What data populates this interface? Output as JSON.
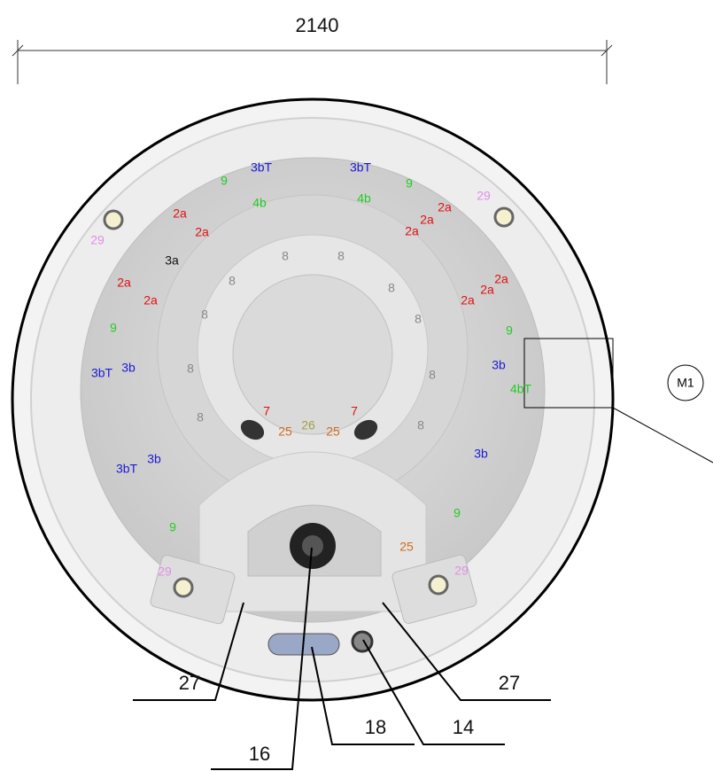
{
  "dimension": "2140",
  "labels": [
    {
      "text": "3bT",
      "color": "#1a1ad6"
    },
    {
      "text": "3bT",
      "color": "#1a1ad6"
    },
    {
      "text": "9",
      "color": "#22cc22"
    },
    {
      "text": "9",
      "color": "#22cc22"
    },
    {
      "text": "29",
      "color": "#e08ee8"
    },
    {
      "text": "4b",
      "color": "#22cc22"
    },
    {
      "text": "4b",
      "color": "#22cc22"
    },
    {
      "text": "2a",
      "color": "#e01010"
    },
    {
      "text": "2a",
      "color": "#e01010"
    },
    {
      "text": "2a",
      "color": "#e01010"
    },
    {
      "text": "2a",
      "color": "#e01010"
    },
    {
      "text": "2a",
      "color": "#e01010"
    },
    {
      "text": "29",
      "color": "#e08ee8"
    },
    {
      "text": "3a",
      "color": "#111111"
    },
    {
      "text": "8",
      "color": "#888888"
    },
    {
      "text": "8",
      "color": "#888888"
    },
    {
      "text": "2a",
      "color": "#e01010"
    },
    {
      "text": "2a",
      "color": "#e01010"
    },
    {
      "text": "2a",
      "color": "#e01010"
    },
    {
      "text": "2a",
      "color": "#e01010"
    },
    {
      "text": "2a",
      "color": "#e01010"
    },
    {
      "text": "8",
      "color": "#888888"
    },
    {
      "text": "8",
      "color": "#888888"
    },
    {
      "text": "8",
      "color": "#888888"
    },
    {
      "text": "8",
      "color": "#888888"
    },
    {
      "text": "8",
      "color": "#888888"
    },
    {
      "text": "8",
      "color": "#888888"
    },
    {
      "text": "8",
      "color": "#888888"
    },
    {
      "text": "8",
      "color": "#888888"
    },
    {
      "text": "9",
      "color": "#22cc22"
    },
    {
      "text": "9",
      "color": "#22cc22"
    },
    {
      "text": "3bT",
      "color": "#1a1ad6"
    },
    {
      "text": "3b",
      "color": "#1a1ad6"
    },
    {
      "text": "3b",
      "color": "#1a1ad6"
    },
    {
      "text": "4bT",
      "color": "#22cc22"
    },
    {
      "text": "7",
      "color": "#e01010"
    },
    {
      "text": "7",
      "color": "#e01010"
    },
    {
      "text": "25",
      "color": "#d2691e"
    },
    {
      "text": "26",
      "color": "#a0a040"
    },
    {
      "text": "25",
      "color": "#d2691e"
    },
    {
      "text": "3bT",
      "color": "#1a1ad6"
    },
    {
      "text": "3b",
      "color": "#1a1ad6"
    },
    {
      "text": "3b",
      "color": "#1a1ad6"
    },
    {
      "text": "9",
      "color": "#22cc22"
    },
    {
      "text": "9",
      "color": "#22cc22"
    },
    {
      "text": "25",
      "color": "#d2691e"
    },
    {
      "text": "29",
      "color": "#e08ee8"
    },
    {
      "text": "29",
      "color": "#e08ee8"
    }
  ],
  "reference": "M1",
  "callouts": [
    "27",
    "27",
    "18",
    "14",
    "16"
  ]
}
